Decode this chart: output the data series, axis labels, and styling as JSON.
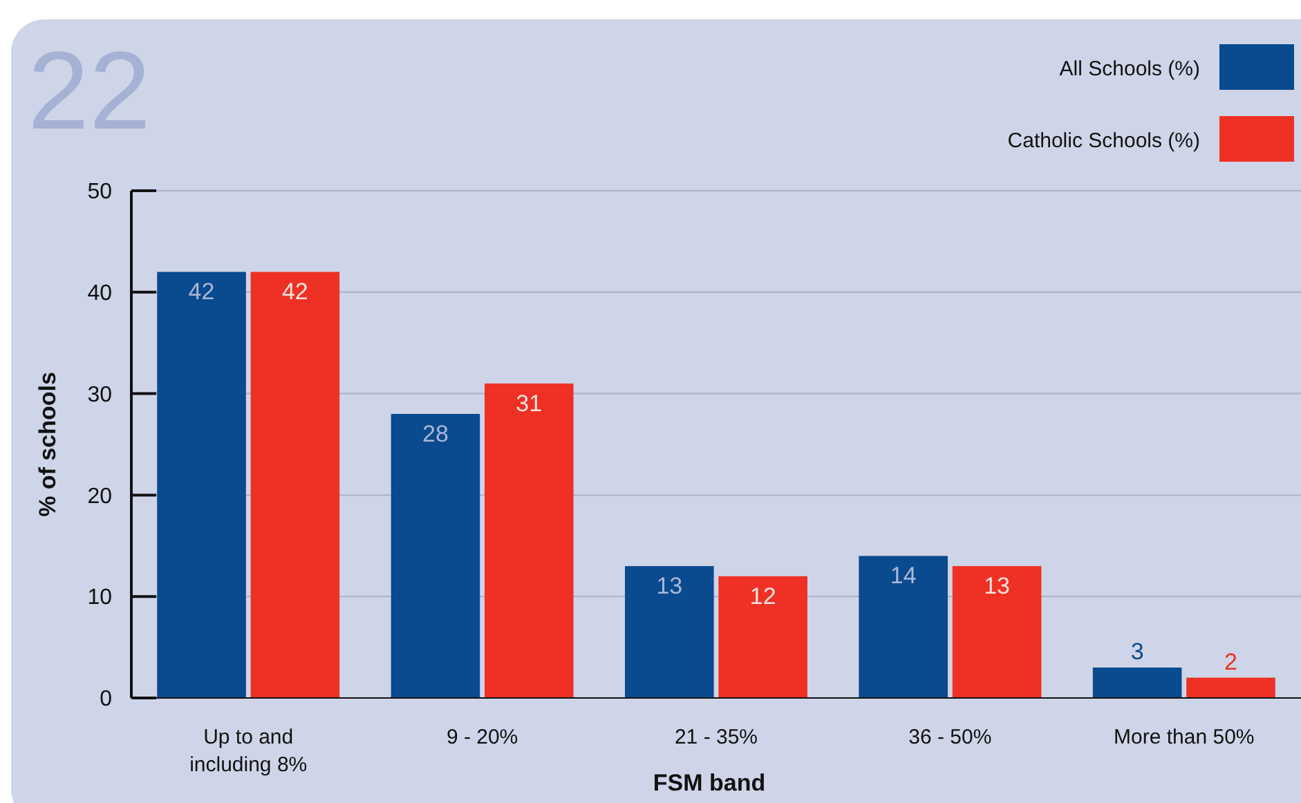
{
  "chart_data": {
    "type": "bar",
    "xlabel": "FSM band",
    "ylabel": "% of schools",
    "categories": [
      "Up to and including 8%",
      "9 - 20%",
      "21 - 35%",
      "36 - 50%",
      "More than 50%"
    ],
    "series": [
      {
        "name": "All Schools (%)",
        "color": "#0a4a8e",
        "values": [
          42,
          28,
          13,
          14,
          3
        ]
      },
      {
        "name": "Catholic Schools (%)",
        "color": "#ee3124",
        "values": [
          42,
          31,
          12,
          13,
          2
        ]
      }
    ],
    "ylim": [
      0,
      50
    ],
    "yticks": [
      0,
      10,
      20,
      30,
      40,
      50
    ],
    "grid": "y",
    "legend": "top right",
    "data_labels": true,
    "annotations": [
      "22"
    ]
  }
}
